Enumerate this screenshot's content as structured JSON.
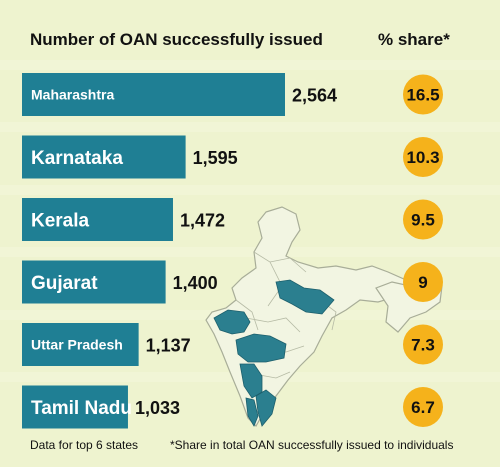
{
  "chart_data": {
    "type": "bar",
    "title": "Number of OAN successfully issued",
    "share_header": "% share*",
    "categories": [
      "Maharashtra",
      "Karnataka",
      "Kerala",
      "Gujarat",
      "Uttar Pradesh",
      "Tamil Nadu"
    ],
    "values": [
      2564,
      1595,
      1472,
      1400,
      1137,
      1033
    ],
    "value_labels": [
      "2,564",
      "1,595",
      "1,472",
      "1,400",
      "1,137",
      "1,033"
    ],
    "share": [
      16.5,
      10.3,
      9.5,
      9,
      7.3,
      6.7
    ],
    "share_labels": [
      "16.5",
      "10.3",
      "9.5",
      "9",
      "7.3",
      "6.7"
    ],
    "xlim": [
      0,
      2564
    ],
    "orientation": "horizontal",
    "footnote_left": "Data for top 6 states",
    "footnote_right": "*Share in total OAN successfully issued to individuals"
  },
  "colors": {
    "background": "#eef3cf",
    "bar": "#1f7f94",
    "bar_text": "#ffffff",
    "circle": "#f5b21b",
    "map_fill": "#f2f5e2",
    "map_stroke": "#a8ad98",
    "map_highlight": "#2b7f8f"
  }
}
